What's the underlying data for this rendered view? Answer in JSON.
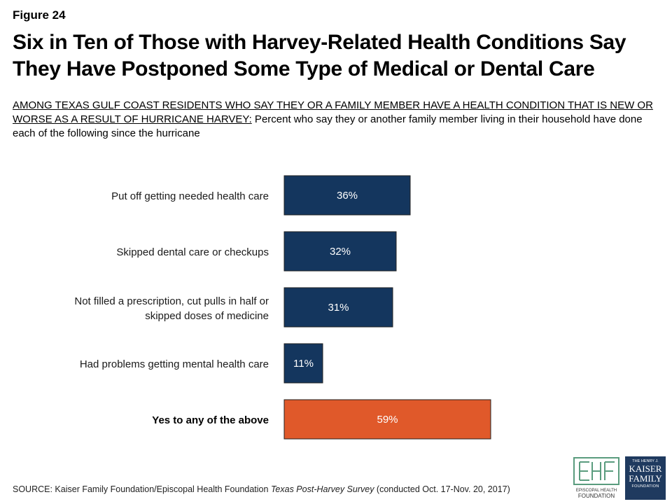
{
  "figure_label": "Figure 24",
  "title": "Six in Ten of Those with Harvey-Related Health Conditions Say They Have Postponed Some Type of Medical or Dental Care",
  "subtitle": {
    "underlined": "AMONG TEXAS GULF COAST RESIDENTS WHO SAY THEY OR A FAMILY MEMBER HAVE A HEALTH CONDITION THAT IS NEW OR WORSE AS A RESULT OF HURRICANE HARVEY:",
    "rest": " Percent who say they or another family member living in their household have done each of the following since the hurricane"
  },
  "chart_data": {
    "type": "bar",
    "orientation": "horizontal",
    "categories": [
      "Put off getting needed health care",
      "Skipped dental care or checkups",
      "Not filled a prescription, cut pulls in half or skipped doses of medicine",
      "Had problems getting mental health care",
      "Yes to any of the above"
    ],
    "category_lines": [
      [
        "Put off getting needed health care"
      ],
      [
        "Skipped dental care or checkups"
      ],
      [
        "Not filled a prescription, cut pulls in half or",
        "skipped doses of medicine"
      ],
      [
        "Had problems getting mental health care"
      ],
      [
        "Yes to any of the above"
      ]
    ],
    "values": [
      36,
      32,
      31,
      11,
      59
    ],
    "value_labels": [
      "36%",
      "32%",
      "31%",
      "11%",
      "59%"
    ],
    "highlight_index": 4,
    "colors": {
      "default": "#14365e",
      "highlight": "#e0592a"
    },
    "xlim": [
      0,
      100
    ],
    "grid": false
  },
  "source": {
    "prefix": "SOURCE: Kaiser Family Foundation/Episcopal Health Foundation ",
    "italic": "Texas Post-Harvey Survey",
    "suffix": " (conducted Oct. 17-Nov. 20, 2017)"
  },
  "logos": {
    "ehf": {
      "icon": "ehf-logo-icon",
      "line1": "EPISCOPAL HEALTH",
      "line2": "FOUNDATION"
    },
    "kff": {
      "icon": "kff-logo-icon",
      "line1": "THE HENRY J.",
      "line2": "KAISER",
      "line3": "FAMILY",
      "line4": "FOUNDATION"
    }
  }
}
